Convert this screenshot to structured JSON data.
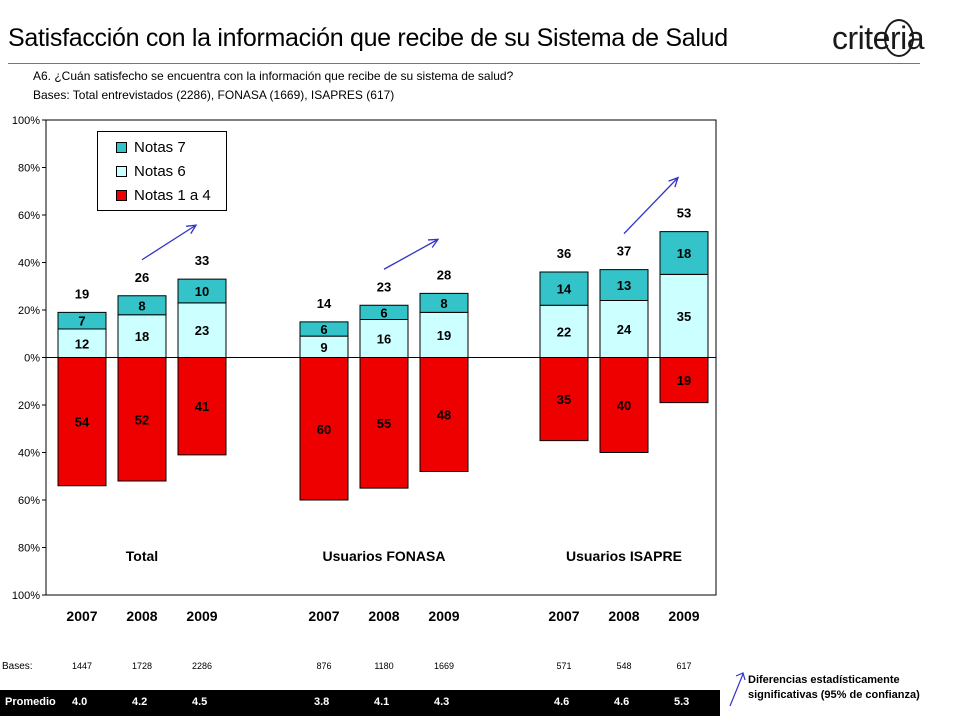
{
  "title": "Satisfacción con la información que recibe de su Sistema de Salud",
  "logo": {
    "text_left": "crite",
    "text_ring": "r",
    "text_right": "ia"
  },
  "question": "A6. ¿Cuán satisfecho se encuentra con la información que recibe de su sistema de salud?",
  "bases_note": "Bases: Total entrevistados (2286), FONASA (1669), ISAPRES (617)",
  "legend": [
    {
      "label": "Notas 7",
      "color": "#33C3C8"
    },
    {
      "label": "Notas 6",
      "color": "#CCFFFF"
    },
    {
      "label": "Notas 1 a 4",
      "color": "#EE0000"
    }
  ],
  "significance_note": {
    "line1": "Diferencias estadísticamente",
    "line2": "significativas (95% de confianza)",
    "color": "#3333CC"
  },
  "bases_row_label": "Bases:",
  "promedio_label": "Promedio",
  "chart_data": {
    "type": "bar",
    "stacked": "diverging",
    "y_tick_labels": [
      "100%",
      "80%",
      "60%",
      "40%",
      "20%",
      "0%",
      "20%",
      "40%",
      "60%",
      "80%",
      "100%"
    ],
    "ylim": [
      -100,
      100
    ],
    "groups": [
      {
        "name": "Total",
        "bars": [
          {
            "year": "2007",
            "notas_1_4": 54,
            "notas_6": 12,
            "notas_7": 7,
            "top_total": 19,
            "base": "1447",
            "promedio": "4.0"
          },
          {
            "year": "2008",
            "notas_1_4": 52,
            "notas_6": 18,
            "notas_7": 8,
            "top_total": 26,
            "base": "1728",
            "promedio": "4.2"
          },
          {
            "year": "2009",
            "notas_1_4": 41,
            "notas_6": 23,
            "notas_7": 10,
            "top_total": 33,
            "base": "2286",
            "promedio": "4.5"
          }
        ]
      },
      {
        "name": "Usuarios FONASA",
        "bars": [
          {
            "year": "2007",
            "notas_1_4": 60,
            "notas_6": 9,
            "notas_7": 6,
            "top_total": 14,
            "base": "876",
            "promedio": "3.8"
          },
          {
            "year": "2008",
            "notas_1_4": 55,
            "notas_6": 16,
            "notas_7": 6,
            "top_total": 23,
            "base": "1180",
            "promedio": "4.1"
          },
          {
            "year": "2009",
            "notas_1_4": 48,
            "notas_6": 19,
            "notas_7": 8,
            "top_total": 28,
            "base": "1669",
            "promedio": "4.3"
          }
        ]
      },
      {
        "name": "Usuarios ISAPRE",
        "bars": [
          {
            "year": "2007",
            "notas_1_4": 35,
            "notas_6": 22,
            "notas_7": 14,
            "top_total": 36,
            "base": "571",
            "promedio": "4.6"
          },
          {
            "year": "2008",
            "notas_1_4": 40,
            "notas_6": 24,
            "notas_7": 13,
            "top_total": 37,
            "base": "548",
            "promedio": "4.6"
          },
          {
            "year": "2009",
            "notas_1_4": 19,
            "notas_6": 35,
            "notas_7": 18,
            "top_total": 53,
            "base": "617",
            "promedio": "5.3"
          }
        ]
      }
    ],
    "significance_arrows_after": [
      {
        "group": "Total",
        "between": [
          "2008",
          "2009"
        ]
      },
      {
        "group": "Usuarios FONASA",
        "between": [
          "2008",
          "2009"
        ]
      },
      {
        "group": "Usuarios ISAPRE",
        "between": [
          "2008",
          "2009"
        ]
      }
    ]
  }
}
